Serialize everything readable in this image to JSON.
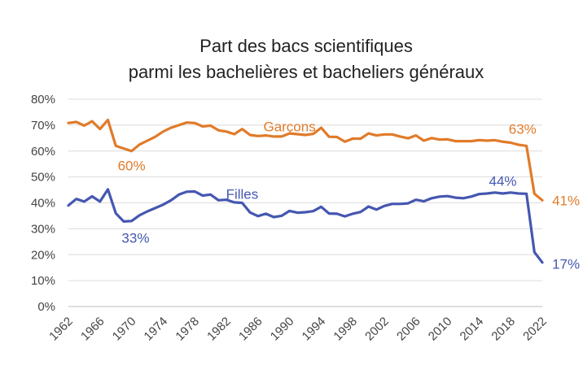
{
  "chart_data": {
    "type": "line",
    "title": [
      "Part des bacs scientifiques",
      "parmi les bachelières et bacheliers généraux"
    ],
    "xlabel": "",
    "ylabel": "",
    "ylim": [
      0,
      80
    ],
    "yticks": [
      "0%",
      "10%",
      "20%",
      "30%",
      "40%",
      "50%",
      "60%",
      "70%",
      "80%"
    ],
    "xticks": [
      "1962",
      "1966",
      "1970",
      "1974",
      "1978",
      "1982",
      "1986",
      "1990",
      "1994",
      "1998",
      "2002",
      "2006",
      "2010",
      "2014",
      "2018",
      "2022"
    ],
    "grid": true,
    "x": [
      1962,
      1963,
      1964,
      1965,
      1966,
      1967,
      1968,
      1969,
      1970,
      1971,
      1972,
      1973,
      1974,
      1975,
      1976,
      1977,
      1978,
      1979,
      1980,
      1981,
      1982,
      1983,
      1984,
      1985,
      1986,
      1987,
      1988,
      1989,
      1990,
      1991,
      1992,
      1993,
      1994,
      1995,
      1996,
      1997,
      1998,
      1999,
      2000,
      2001,
      2002,
      2003,
      2004,
      2005,
      2006,
      2007,
      2008,
      2009,
      2010,
      2011,
      2012,
      2013,
      2014,
      2015,
      2016,
      2017,
      2018,
      2019,
      2020,
      2021,
      2022
    ],
    "series": [
      {
        "name": "Garçons",
        "color": "#e07b2a",
        "values": [
          70.8,
          71.2,
          69.8,
          71.5,
          68.5,
          72.0,
          62.0,
          61.0,
          60.0,
          62.5,
          64.0,
          65.5,
          67.5,
          69.0,
          70.0,
          71.0,
          70.8,
          69.5,
          69.8,
          68.0,
          67.5,
          66.5,
          68.5,
          66.2,
          65.8,
          66.0,
          65.6,
          65.6,
          66.8,
          66.5,
          66.2,
          66.6,
          69.0,
          65.5,
          65.4,
          63.6,
          64.8,
          64.8,
          66.8,
          66.0,
          66.4,
          66.4,
          65.6,
          64.9,
          66.0,
          64.0,
          65.0,
          64.4,
          64.5,
          63.8,
          63.8,
          63.8,
          64.2,
          64.0,
          64.2,
          63.6,
          63.2,
          62.4,
          62.0,
          43.5,
          41.0
        ]
      },
      {
        "name": "Filles",
        "color": "#4557b0",
        "values": [
          39.0,
          41.5,
          40.5,
          42.5,
          40.5,
          45.2,
          36.0,
          32.8,
          33.0,
          35.2,
          36.7,
          38.0,
          39.3,
          41.0,
          43.2,
          44.3,
          44.4,
          42.8,
          43.2,
          41.0,
          41.2,
          40.2,
          40.0,
          36.3,
          34.9,
          35.8,
          34.5,
          35.0,
          36.9,
          36.2,
          36.4,
          36.8,
          38.5,
          35.9,
          35.8,
          34.8,
          35.8,
          36.5,
          38.6,
          37.4,
          38.8,
          39.6,
          39.6,
          39.8,
          41.2,
          40.6,
          41.8,
          42.4,
          42.6,
          42.0,
          41.8,
          42.4,
          43.4,
          43.6,
          44.0,
          43.6,
          44.0,
          43.6,
          43.5,
          21.0,
          17.0
        ]
      }
    ],
    "annotations": [
      {
        "text": "Garçons",
        "series": 0,
        "x": 1990,
        "y": 69.5
      },
      {
        "text": "60%",
        "series": 0,
        "x": 1970,
        "y": 54.5
      },
      {
        "text": "63%",
        "series": 0,
        "x": 2019.5,
        "y": 68.5
      },
      {
        "text": "41%",
        "series": 0,
        "x": 2025,
        "y": 41
      },
      {
        "text": "Filles",
        "series": 1,
        "x": 1984,
        "y": 43.5
      },
      {
        "text": "33%",
        "series": 1,
        "x": 1970.5,
        "y": 26.5
      },
      {
        "text": "44%",
        "series": 1,
        "x": 2017,
        "y": 48.5
      },
      {
        "text": "17%",
        "series": 1,
        "x": 2025,
        "y": 16.5
      }
    ]
  }
}
